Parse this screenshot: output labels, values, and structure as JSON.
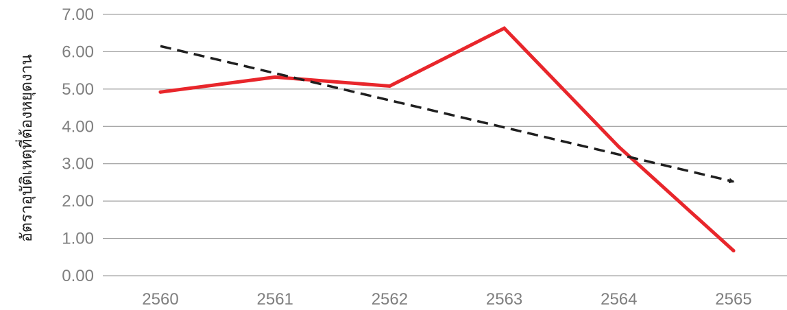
{
  "chart_data": {
    "type": "line",
    "title": "",
    "xlabel": "",
    "ylabel": "อัตราอุบัติเหตุที่ต้องหยุดงาน",
    "categories": [
      "2560",
      "2561",
      "2562",
      "2563",
      "2564",
      "2565"
    ],
    "y_ticks": [
      "0.00",
      "1.00",
      "2.00",
      "3.00",
      "4.00",
      "5.00",
      "6.00",
      "7.00"
    ],
    "ylim": [
      0,
      7
    ],
    "grid": true,
    "legend": "none",
    "series": [
      {
        "values": [
          4.92,
          5.32,
          5.08,
          6.63,
          3.45,
          0.67
        ],
        "color": "#e8262b",
        "style": "solid"
      },
      {
        "kind": "trend",
        "from": {
          "x": "2560",
          "y": 6.15
        },
        "to": {
          "x": "2565",
          "y": 2.52
        },
        "color": "#1f1f1f",
        "style": "dashed-arrow"
      }
    ]
  }
}
